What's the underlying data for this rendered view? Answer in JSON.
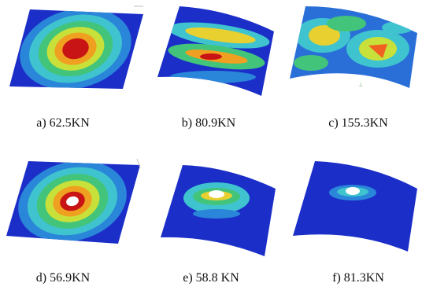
{
  "panels": [
    {
      "caption": "a) 62.5KN"
    },
    {
      "caption": "b) 80.9KN"
    },
    {
      "caption": "c) 155.3KN"
    },
    {
      "caption": "d) 56.9KN"
    },
    {
      "caption": "e) 58.8 KN"
    },
    {
      "caption": "f) 81.3KN"
    }
  ]
}
